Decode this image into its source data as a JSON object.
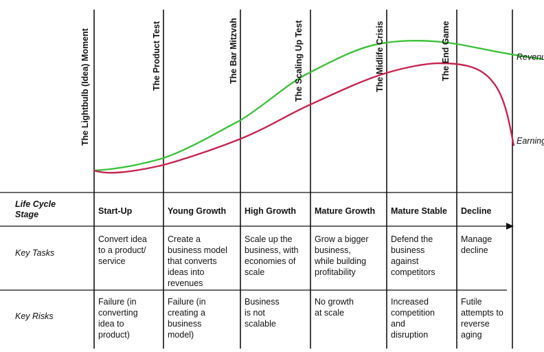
{
  "moments": [
    "The Lightbulb (Idea) Moment",
    "The Product Test",
    "The Bar Mitzvah",
    "The Scaling Up Test",
    "The Midlife Crisis",
    "The End Game"
  ],
  "curves": {
    "revenue": {
      "label": "Revenues",
      "color": "#3cc23a"
    },
    "earnings": {
      "label": "Earnings",
      "color": "#c8234f"
    }
  },
  "rows": {
    "stage_label": "Life Cycle\nStage",
    "tasks_label": "Key Tasks",
    "risks_label": "Key Risks"
  },
  "stages": [
    {
      "name": "Start-Up",
      "task": "Convert idea\nto a product/\nservice",
      "risk": "Failure (in\nconverting\nidea to\nproduct)"
    },
    {
      "name": "Young Growth",
      "task": "Create a\nbusiness model\nthat converts\nideas into\nrevenues",
      "risk": "Failure (in\ncreating a\nbusiness\nmodel)"
    },
    {
      "name": "High Growth",
      "task": "Scale up the\nbusiness, with\neconomies of\nscale",
      "risk": "Business\nis not\nscalable"
    },
    {
      "name": "Mature Growth",
      "task": "Grow a bigger\nbusiness,\nwhile building\nprofitability",
      "risk": "No growth\nat scale"
    },
    {
      "name": "Mature Stable",
      "task": "Defend the\nbusiness\nagainst\ncompetitors",
      "risk": "Increased\ncompetition\nand\ndisruption"
    },
    {
      "name": "Decline",
      "task": "Manage\ndecline",
      "risk": "Futile\nattempts to\nreverse\naging"
    }
  ]
}
